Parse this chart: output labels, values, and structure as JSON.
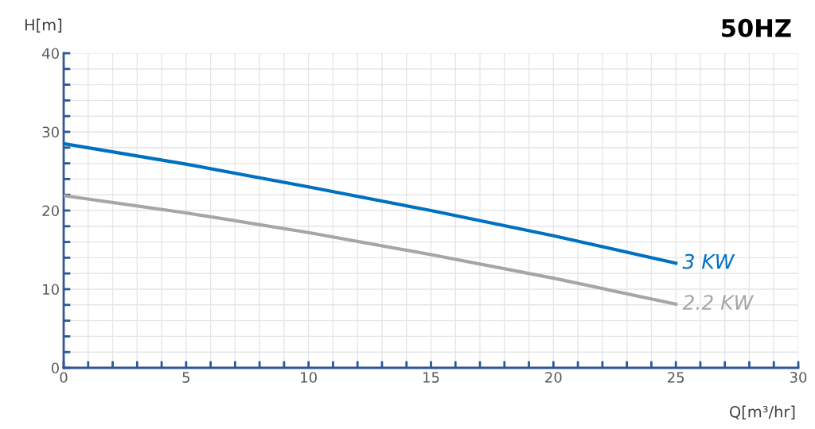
{
  "chart_data": {
    "type": "line",
    "title": "50HZ",
    "xlabel": "Q[m³/hr]",
    "ylabel": "H[m]",
    "x": [
      0,
      5,
      10,
      15,
      20,
      25
    ],
    "series": [
      {
        "name": "3 KW",
        "color": "#0070c0",
        "values": [
          28.5,
          25.9,
          23.0,
          20.0,
          16.8,
          13.3
        ]
      },
      {
        "name": "2.2 KW",
        "color": "#a6a6a6",
        "values": [
          21.9,
          19.7,
          17.2,
          14.4,
          11.4,
          8.1
        ]
      }
    ],
    "xlim": [
      0,
      30
    ],
    "ylim": [
      0,
      40
    ],
    "xticks": [
      0,
      {
        "value": 1,
        "label": null
      },
      {
        "value": 2,
        "label": null
      },
      {
        "value": 3,
        "label": null
      },
      {
        "value": 4,
        "label": null
      },
      5,
      {
        "value": 6,
        "label": null
      },
      {
        "value": 7,
        "label": null
      },
      {
        "value": 8,
        "label": null
      },
      {
        "value": 9,
        "label": null
      },
      10,
      {
        "value": 11,
        "label": null
      },
      {
        "value": 12,
        "label": null
      },
      {
        "value": 13,
        "label": null
      },
      {
        "value": 14,
        "label": null
      },
      15,
      {
        "value": 16,
        "label": null
      },
      {
        "value": 17,
        "label": null
      },
      {
        "value": 18,
        "label": null
      },
      {
        "value": 19,
        "label": null
      },
      20,
      {
        "value": 21,
        "label": null
      },
      {
        "value": 22,
        "label": null
      },
      {
        "value": 23,
        "label": null
      },
      {
        "value": 24,
        "label": null
      },
      25,
      {
        "value": 26,
        "label": null
      },
      {
        "value": 27,
        "label": null
      },
      {
        "value": 28,
        "label": null
      },
      {
        "value": 29,
        "label": null
      },
      30
    ],
    "yticks": [
      0,
      {
        "value": 2,
        "label": null
      },
      {
        "value": 4,
        "label": null
      },
      {
        "value": 6,
        "label": null
      },
      {
        "value": 8,
        "label": null
      },
      10,
      {
        "value": 12,
        "label": null
      },
      {
        "value": 14,
        "label": null
      },
      {
        "value": 16,
        "label": null
      },
      {
        "value": 18,
        "label": null
      },
      20,
      {
        "value": 22,
        "label": null
      },
      {
        "value": 24,
        "label": null
      },
      {
        "value": 26,
        "label": null
      },
      {
        "value": 28,
        "label": null
      },
      30,
      {
        "value": 32,
        "label": null
      },
      {
        "value": 34,
        "label": null
      },
      {
        "value": 36,
        "label": null
      },
      {
        "value": 38,
        "label": null
      },
      40
    ],
    "grid": true,
    "legend": false,
    "marker": "none",
    "line_style": "solid"
  }
}
